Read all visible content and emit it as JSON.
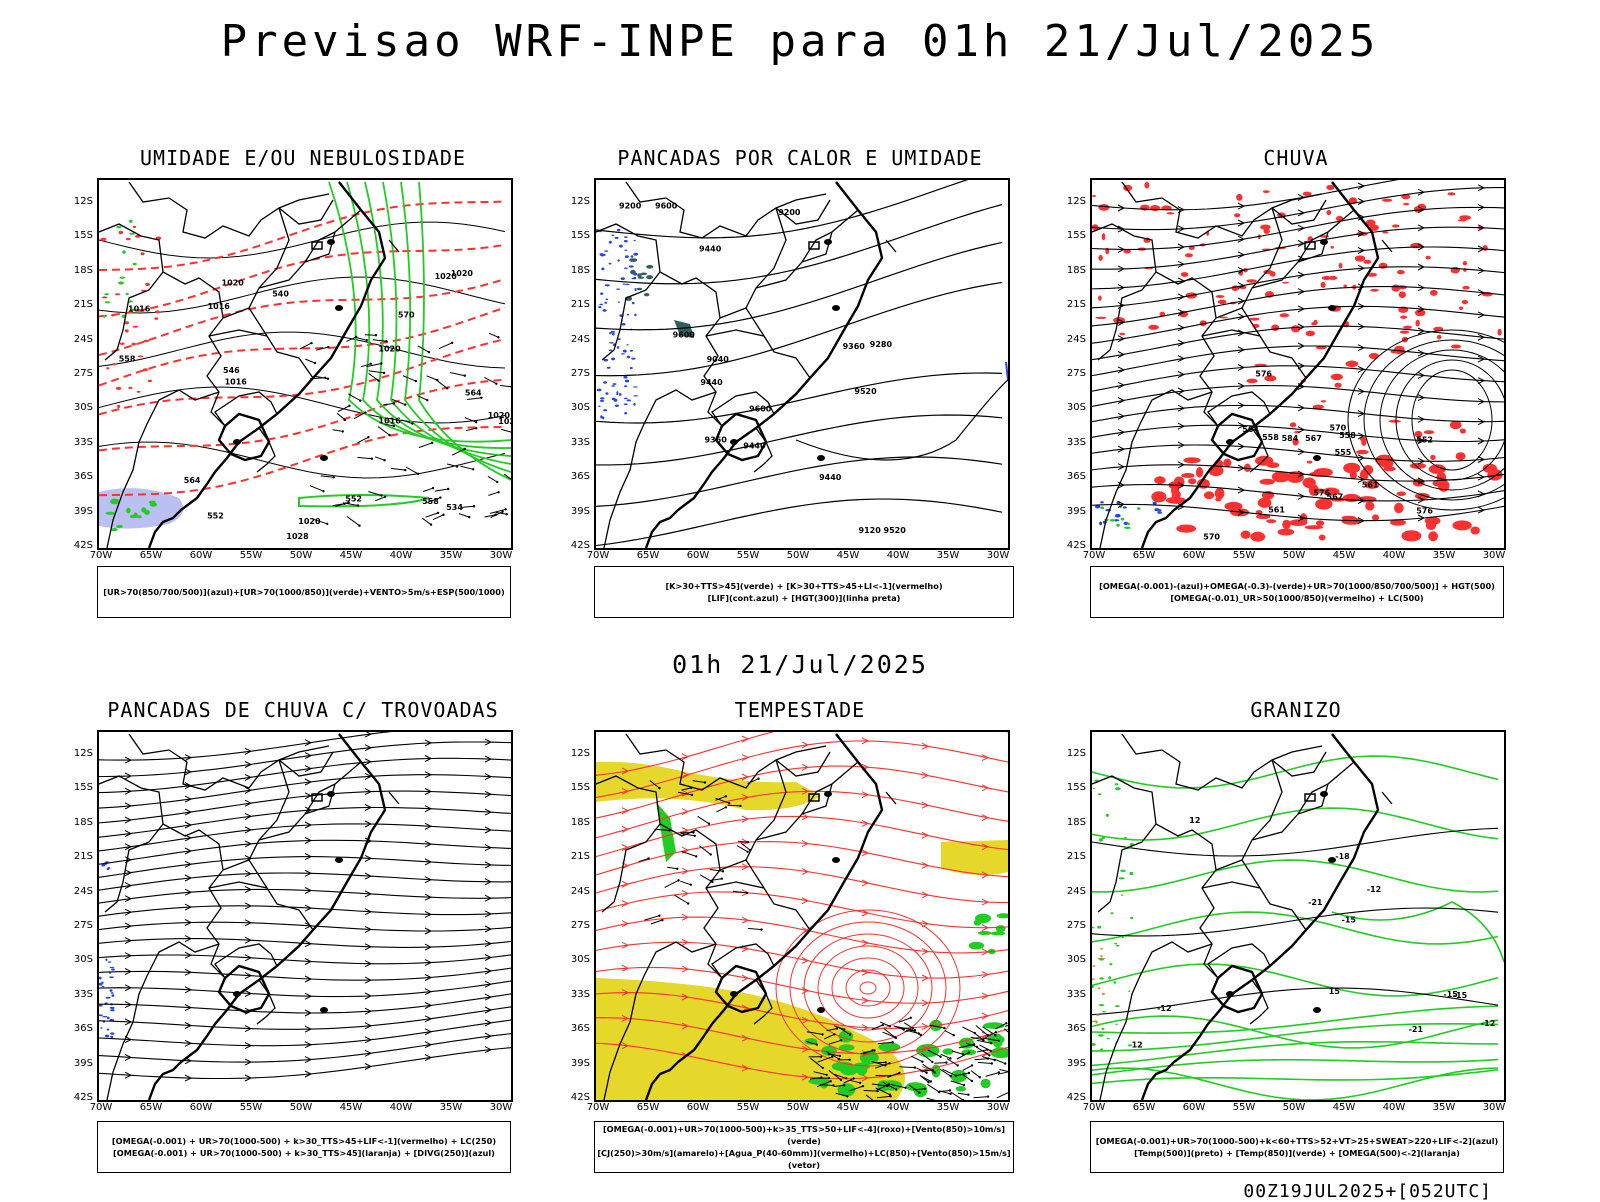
{
  "title": "Previsao WRF-INPE  para 01h 21/Jul/2025",
  "mid_date": "01h 21/Jul/2025",
  "footer": "00Z19JUL2025+[052UTC]",
  "lat_labels": [
    "12S",
    "15S",
    "18S",
    "21S",
    "24S",
    "27S",
    "30S",
    "33S",
    "36S",
    "39S",
    "42S"
  ],
  "lon_labels": [
    "70W",
    "65W",
    "60W",
    "55W",
    "50W",
    "45W",
    "40W",
    "35W",
    "30W"
  ],
  "colors": {
    "red": "#ff3030",
    "green": "#22cc22",
    "blue": "#2244ee",
    "yellow": "#e6d82a",
    "lavender": "#aab0f0",
    "teal": "#2f6060"
  },
  "panels": [
    {
      "id": "umidade",
      "title": "UMIDADE E/OU NEBULOSIDADE",
      "caption": [
        "[UR>70(850/700/500)](azul)+[UR>70(1000/850)](verde)+VENTO>5m/s+ESP(500/1000)"
      ]
    },
    {
      "id": "pancadas-calor",
      "title": "PANCADAS POR CALOR E UMIDADE",
      "caption": [
        "[K>30+TTS>45](verde) + [K>30+TTS>45+LI<-1](vermelho)",
        "[LIF](cont.azul) + [HGT(300)](linha preta)"
      ]
    },
    {
      "id": "chuva",
      "title": "CHUVA",
      "caption": [
        "[OMEGA(-0.001)-(azul)+OMEGA(-0.3)-(verde)+UR>70(1000/850/700/500)] + HGT(500)",
        "[OMEGA(-0.01)_UR>50(1000/850)(vermelho) + LC(500)"
      ]
    },
    {
      "id": "pancadas-trovoadas",
      "title": "PANCADAS DE CHUVA C/ TROVOADAS",
      "caption": [
        "[OMEGA(-0.001) + UR>70(1000-500) + k>30_TTS>45+LIF<-1](vermelho) + LC(250)",
        "[OMEGA(-0.001) + UR>70(1000-500) + k>30_TTS>45](laranja) + [DIVG(250)](azul)"
      ]
    },
    {
      "id": "tempestade",
      "title": "TEMPESTADE",
      "caption": [
        "[OMEGA(-0.001)+UR>70(1000-500)+k>35_TTS>50+LIF<-4](roxo)+[Vento(850)>10m/s](verde)",
        "[CJ(250)>30m/s](amarelo)+[Agua_P(40-60mm)](vermelho)+LC(850)+[Vento(850)>15m/s](vetor)"
      ]
    },
    {
      "id": "granizo",
      "title": "GRANIZO",
      "caption": [
        "[OMEGA(-0.001)+UR>70(1000-500)+k<60+TTS>52+VT>25+SWEAT>220+LIF<-2](azul)",
        "[Temp(500)](preto) + [Temp(850)](verde) + [OMEGA(500)<-2](laranja)"
      ]
    }
  ],
  "contour_labels": {
    "umidade": [
      "1016",
      "1016",
      "1020",
      "1020",
      "1020",
      "1028",
      "1016",
      "1016",
      "1020",
      "1020",
      "1020",
      "1020",
      "570",
      "564",
      "558",
      "552",
      "546",
      "540",
      "534",
      "552",
      "558",
      "564"
    ],
    "pancadas-calor": [
      "9600",
      "9600",
      "9600",
      "9520",
      "9520",
      "9440",
      "9440",
      "9440",
      "9360",
      "9360",
      "9280",
      "9200",
      "9200",
      "9120",
      "9040",
      "9440"
    ],
    "chuva": [
      "570",
      "576",
      "576",
      "564",
      "561",
      "558",
      "555",
      "567",
      "584",
      "576",
      "570",
      "552",
      "558",
      "561",
      "567"
    ],
    "granizo": [
      "-12",
      "-15",
      "-15",
      "-12",
      "-18",
      "-21",
      "-21",
      "-12",
      "-15",
      "12",
      "12",
      "15"
    ]
  }
}
